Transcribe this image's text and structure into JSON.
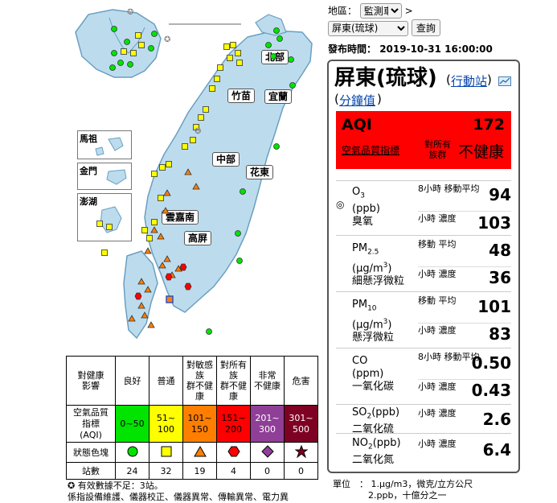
{
  "map": {
    "regions": [
      "北部",
      "竹苗",
      "宜蘭",
      "中部",
      "花東",
      "雲嘉南",
      "高屏"
    ],
    "insets": [
      "馬祖",
      "金門",
      "澎湖"
    ]
  },
  "legend": {
    "row_headers": [
      "對健康\n影響",
      "空氣品質\n指標\n(AQI)",
      "狀態色塊",
      "站數"
    ],
    "cols": [
      {
        "name": "良好",
        "range": "0~50",
        "count": "24",
        "color": "#00e400",
        "shape": "circle"
      },
      {
        "name": "普通",
        "range": "51~\n100",
        "count": "32",
        "color": "#ffff00",
        "shape": "square"
      },
      {
        "name": "對敏感\n族\n群不健\n康",
        "range": "101~\n150",
        "count": "19",
        "color": "#ff7e00",
        "shape": "triangle"
      },
      {
        "name": "對所有\n族\n群不健\n康",
        "range": "151~\n200",
        "count": "4",
        "color": "#ff0000",
        "shape": "hexagon"
      },
      {
        "name": "非常\n不健康",
        "range": "201~\n300",
        "count": "0",
        "color": "#8f3f97",
        "shape": "diamond"
      },
      {
        "name": "危害",
        "range": "301~\n500",
        "count": "0",
        "color": "#7e0023",
        "shape": "star"
      }
    ],
    "note1": "有效數據不足：3站。",
    "note2": "係指設備維護、儀器校正、儀器異常、傳輸異常、電力異"
  },
  "controls": {
    "region_label": "地區：",
    "region_value": "監測車",
    "arrow": ">",
    "station_value": "屏東(琉球)",
    "query_label": "查詢",
    "publish_label": "發布時間：",
    "publish_time": "2019-10-31 16:00:00"
  },
  "station": {
    "name": "屏東(琉球)",
    "mobile_link": "行動站",
    "minute_link": "分鐘值",
    "aqi_label": "AQI",
    "aqi_value": "172",
    "aqi_index_link": "空氣品質指標",
    "status_small": "對所有\n族群",
    "status_big": "不健康",
    "status_color": "#ff0000"
  },
  "pollutants": [
    {
      "name": "O3\n(ppb)\n臭氧",
      "l1": "8小時\n移動平均",
      "v1": "94",
      "l2": "小時\n濃度",
      "v2": "103",
      "marker": "◎"
    },
    {
      "name": "PM2.5\n(μg/m3)\n細懸浮微粒",
      "l1": "移動\n平均",
      "v1": "48",
      "l2": "小時\n濃度",
      "v2": "36"
    },
    {
      "name": "PM10\n(μg/m3)\n懸浮微粒",
      "l1": "移動\n平均",
      "v1": "101",
      "l2": "小時\n濃度",
      "v2": "83"
    },
    {
      "name": "CO\n(ppm)\n一氧化碳",
      "l1": "8小時\n移動平均",
      "v1": "0.50",
      "l2": "小時\n濃度",
      "v2": "0.43"
    },
    {
      "name": "SO2(ppb)\n二氧化硫",
      "l1": "小時\n濃度",
      "v1": "2.6"
    },
    {
      "name": "NO2(ppb)\n二氧化氮",
      "l1": "小時\n濃度",
      "v1": "6.4"
    }
  ],
  "units": {
    "label": "單位　：",
    "line1": "1.μg/m3，微克/立方公尺",
    "line2": "2.ppb，十億分之一"
  }
}
